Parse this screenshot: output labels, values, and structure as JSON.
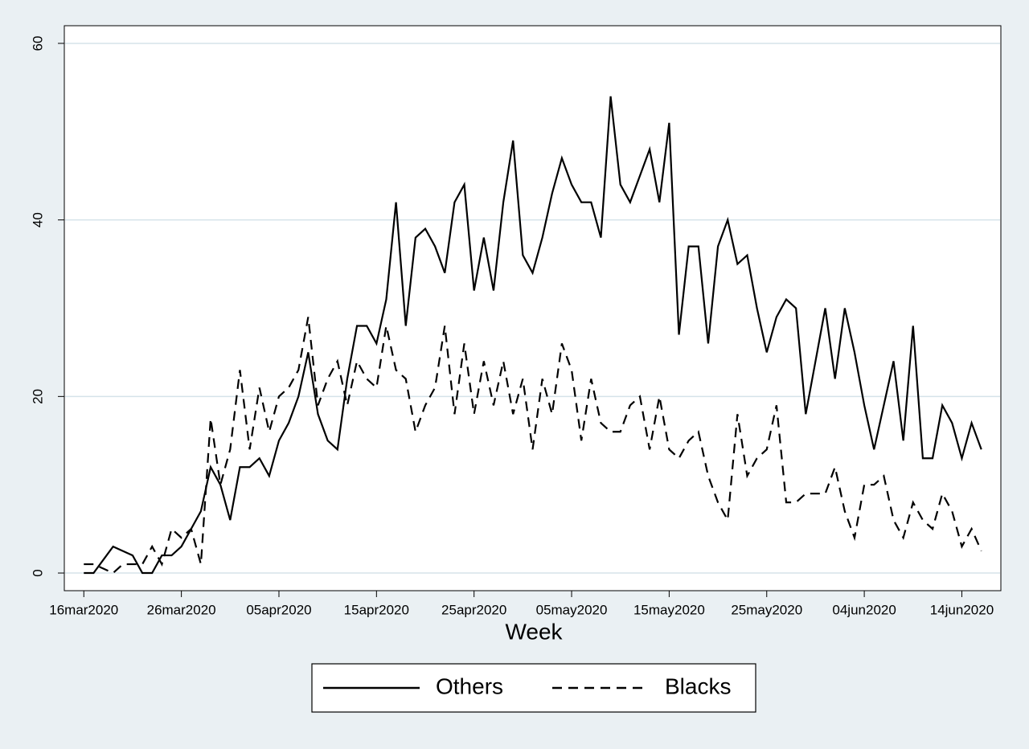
{
  "chart_data": {
    "type": "line",
    "x_label": "Week",
    "x": [
      "2020-03-16",
      "2020-03-17",
      "2020-03-18",
      "2020-03-19",
      "2020-03-20",
      "2020-03-21",
      "2020-03-22",
      "2020-03-23",
      "2020-03-24",
      "2020-03-25",
      "2020-03-26",
      "2020-03-27",
      "2020-03-28",
      "2020-03-29",
      "2020-03-30",
      "2020-03-31",
      "2020-04-01",
      "2020-04-02",
      "2020-04-03",
      "2020-04-04",
      "2020-04-05",
      "2020-04-06",
      "2020-04-07",
      "2020-04-08",
      "2020-04-09",
      "2020-04-10",
      "2020-04-11",
      "2020-04-12",
      "2020-04-13",
      "2020-04-14",
      "2020-04-15",
      "2020-04-16",
      "2020-04-17",
      "2020-04-18",
      "2020-04-19",
      "2020-04-20",
      "2020-04-21",
      "2020-04-22",
      "2020-04-23",
      "2020-04-24",
      "2020-04-25",
      "2020-04-26",
      "2020-04-27",
      "2020-04-28",
      "2020-04-29",
      "2020-04-30",
      "2020-05-01",
      "2020-05-02",
      "2020-05-03",
      "2020-05-04",
      "2020-05-05",
      "2020-05-06",
      "2020-05-07",
      "2020-05-08",
      "2020-05-09",
      "2020-05-10",
      "2020-05-11",
      "2020-05-12",
      "2020-05-13",
      "2020-05-14",
      "2020-05-15",
      "2020-05-16",
      "2020-05-17",
      "2020-05-18",
      "2020-05-19",
      "2020-05-20",
      "2020-05-21",
      "2020-05-22",
      "2020-05-23",
      "2020-05-24",
      "2020-05-25",
      "2020-05-26",
      "2020-05-27",
      "2020-05-28",
      "2020-05-29",
      "2020-05-30",
      "2020-05-31",
      "2020-06-01",
      "2020-06-02",
      "2020-06-03",
      "2020-06-04",
      "2020-06-05",
      "2020-06-06",
      "2020-06-07",
      "2020-06-08",
      "2020-06-09",
      "2020-06-10",
      "2020-06-11",
      "2020-06-12",
      "2020-06-13",
      "2020-06-14",
      "2020-06-15",
      "2020-06-16"
    ],
    "series": [
      {
        "name": "Others",
        "color": "#000000",
        "style": "solid",
        "values": [
          0,
          0,
          1.5,
          3,
          2.5,
          2,
          0,
          0,
          2,
          2,
          3,
          5,
          7,
          12,
          10,
          6,
          12,
          12,
          13,
          11,
          15,
          17,
          20,
          25,
          18,
          15,
          14,
          22,
          28,
          28,
          26,
          31,
          42,
          28,
          38,
          39,
          37,
          34,
          42,
          44,
          32,
          38,
          32,
          42,
          49,
          36,
          34,
          38,
          43,
          47,
          44,
          42,
          42,
          38,
          54,
          44,
          42,
          45,
          48,
          42,
          51,
          27,
          37,
          37,
          26,
          37,
          40,
          35,
          36,
          30,
          25,
          29,
          31,
          30,
          18,
          24,
          30,
          22,
          30,
          25,
          19,
          14,
          19,
          24,
          15,
          28,
          13,
          13,
          19,
          17,
          13,
          17,
          14
        ]
      },
      {
        "name": "Blacks",
        "color": "#000000",
        "style": "dashed",
        "values": [
          1,
          1,
          0.5,
          0,
          1,
          1,
          1,
          3,
          1,
          5,
          4,
          5,
          1,
          17.5,
          10,
          14,
          23,
          14,
          21,
          16,
          20,
          21,
          23,
          29,
          19,
          22,
          24,
          19,
          24,
          22,
          21,
          28,
          23,
          22,
          16,
          19,
          21,
          28,
          18,
          26,
          18,
          24,
          19,
          24,
          18,
          22,
          14,
          22,
          18,
          26,
          23,
          15,
          22,
          17,
          16,
          16,
          19,
          20,
          14,
          20,
          14,
          13,
          15,
          16,
          11,
          8,
          6,
          18,
          11,
          13,
          14,
          19,
          8,
          8,
          9,
          9,
          9,
          12,
          7,
          4,
          10,
          10,
          11,
          6,
          4,
          8,
          6,
          5,
          9,
          7,
          3,
          5,
          2.5
        ]
      }
    ],
    "xlim": [
      "2020-03-14",
      "2020-06-18"
    ],
    "xticks": [
      {
        "value": "2020-03-16",
        "label": "16mar2020"
      },
      {
        "value": "2020-03-26",
        "label": "26mar2020"
      },
      {
        "value": "2020-04-05",
        "label": "05apr2020"
      },
      {
        "value": "2020-04-15",
        "label": "15apr2020"
      },
      {
        "value": "2020-04-25",
        "label": "25apr2020"
      },
      {
        "value": "2020-05-05",
        "label": "05may2020"
      },
      {
        "value": "2020-05-15",
        "label": "15may2020"
      },
      {
        "value": "2020-05-25",
        "label": "25may2020"
      },
      {
        "value": "2020-06-04",
        "label": "04jun2020"
      },
      {
        "value": "2020-06-14",
        "label": "14jun2020"
      }
    ],
    "ylim": [
      -2,
      62
    ],
    "yticks": [
      0,
      20,
      40,
      60
    ],
    "grid": true,
    "legend": "bottom"
  }
}
